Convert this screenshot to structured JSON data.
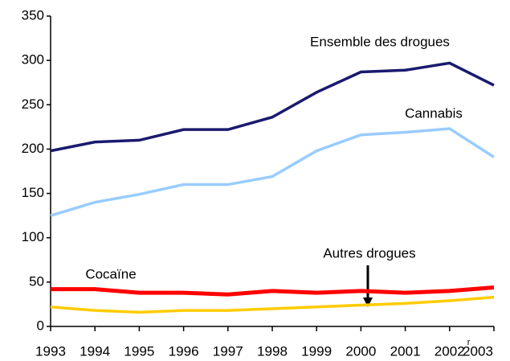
{
  "chart_data": {
    "type": "line",
    "categories": [
      "1993",
      "1994",
      "1995",
      "1996",
      "1997",
      "1998",
      "1999",
      "2000",
      "2001",
      "2002",
      "2003"
    ],
    "revision_mark": "r",
    "series": [
      {
        "name": "Ensemble des drogues",
        "color": "#1a1a6e",
        "values": [
          198,
          208,
          210,
          222,
          222,
          236,
          264,
          287,
          289,
          297,
          272
        ]
      },
      {
        "name": "Cannabis",
        "color": "#99ccff",
        "values": [
          125,
          140,
          149,
          160,
          160,
          169,
          198,
          216,
          219,
          223,
          191
        ]
      },
      {
        "name": "Cocaïne",
        "color": "#ff0000",
        "values": [
          42,
          42,
          38,
          38,
          36,
          40,
          38,
          40,
          38,
          40,
          44
        ]
      },
      {
        "name": "Autres drogues",
        "color": "#ffcc00",
        "values": [
          22,
          18,
          16,
          18,
          18,
          20,
          22,
          24,
          26,
          29,
          33
        ]
      }
    ],
    "ylim": [
      0,
      350
    ],
    "yticks": [
      0,
      50,
      100,
      150,
      200,
      250,
      300,
      350
    ]
  }
}
